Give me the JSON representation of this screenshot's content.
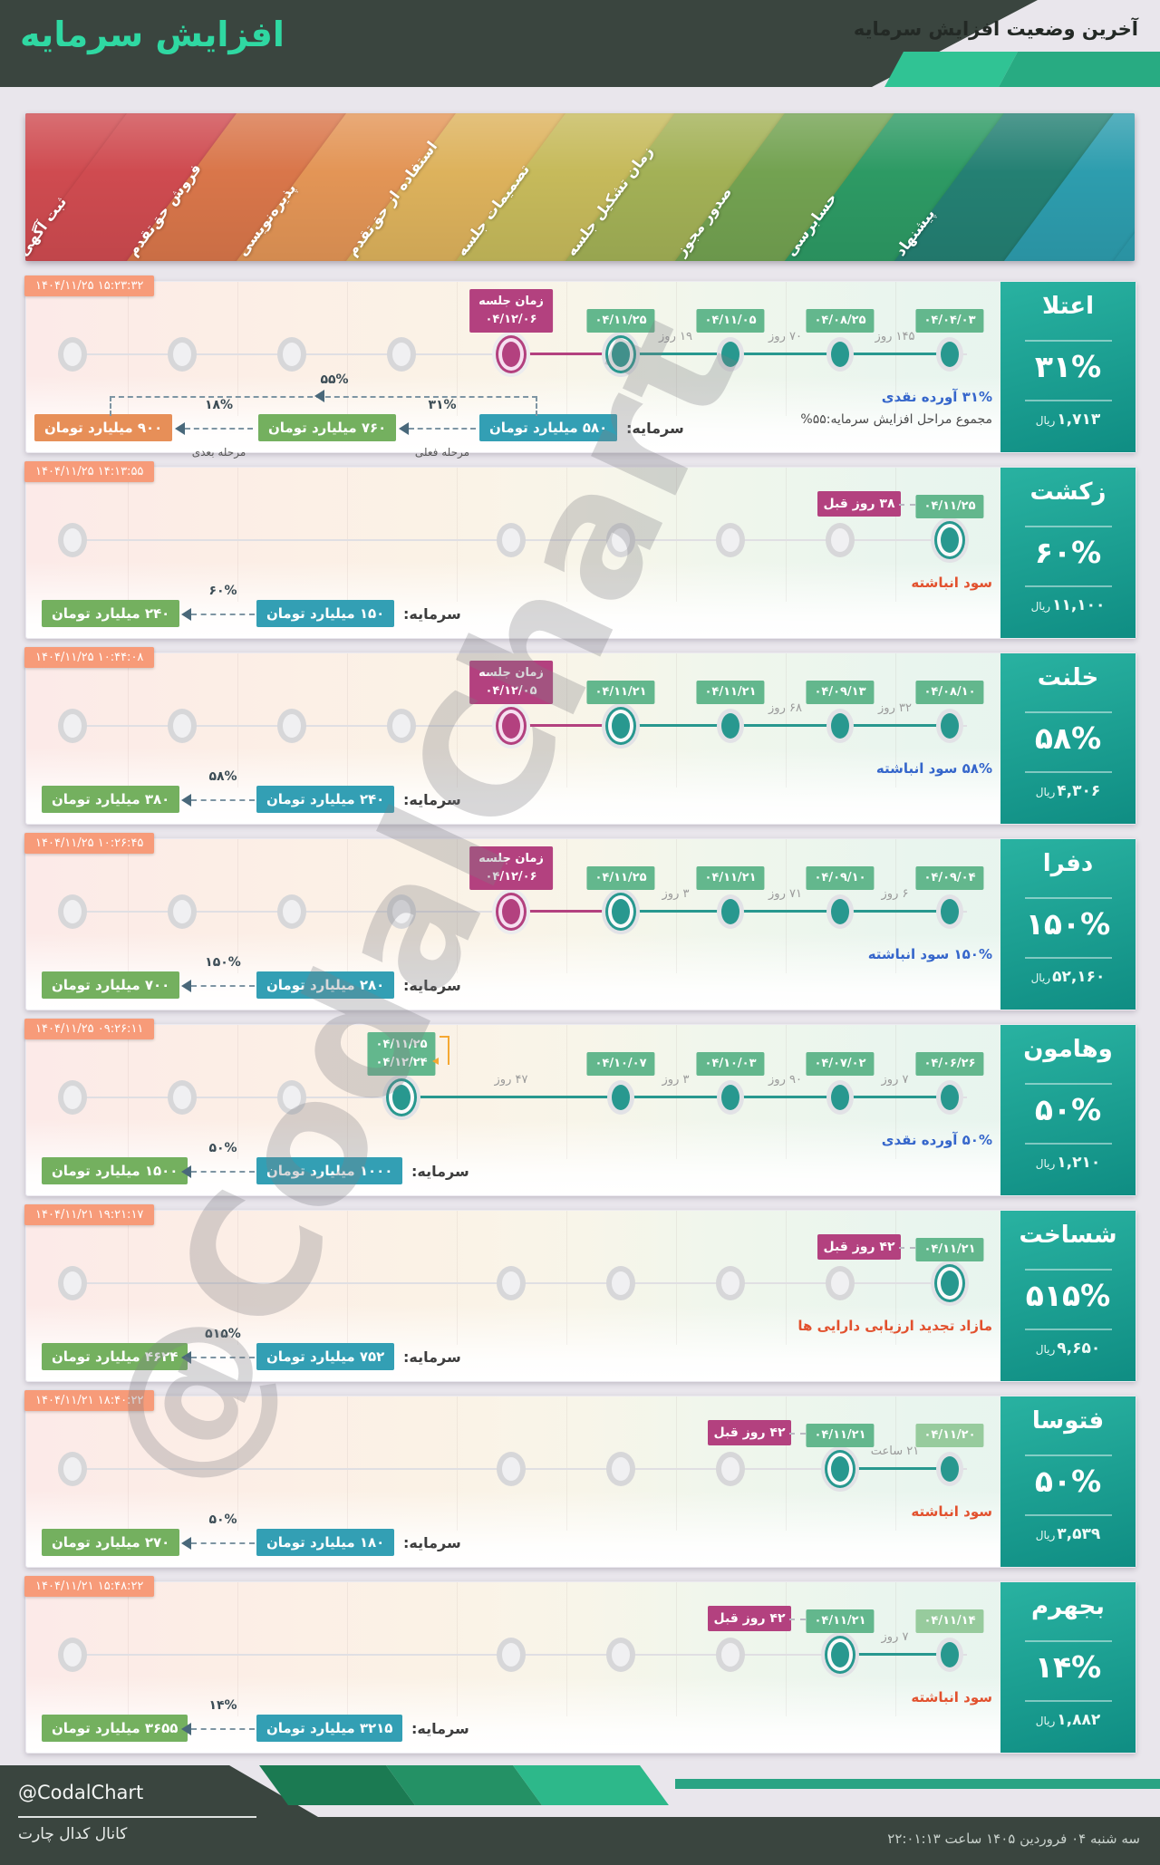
{
  "page": {
    "bg": "#e9e6ec"
  },
  "colors": {
    "header_dark": "#3a453f",
    "title": "#2fd8a2",
    "panel_grad_a": "#29b2a1",
    "panel_grad_b": "#0f8d83",
    "salmon": "#f79b79",
    "date_badge": "#63b78d",
    "date_badge_light": "#97cb9d",
    "magenta": "#b3417f",
    "teal_dot": "#28988f",
    "blue_box": "#339fb4",
    "green_box": "#74b05f",
    "orange_box": "#e78f58",
    "status_red": "#e2512e",
    "status_blue": "#3566cb",
    "status_dark": "#4a4a4a",
    "arrow": "#49687a",
    "bracket_orange": "#f5a833"
  },
  "header": {
    "title": "افزایش سرمایه",
    "subtitle": "آخرین وضعیت افزایش سرمایه"
  },
  "banner": {
    "stages": [
      {
        "label": "ثبت آگهی",
        "color": "#cf4b50"
      },
      {
        "label": "فروش حق‌تقدم",
        "color": "#d9764a"
      },
      {
        "label": "پذیره‌نویسی",
        "color": "#e39556"
      },
      {
        "label": "استفاده از حق‌تقدم",
        "color": "#ddb25c"
      },
      {
        "label": "تصمیمات جلسه",
        "color": "#c6ba5b"
      },
      {
        "label": "زمان تشکیل جلسه",
        "color": "#a3b156"
      },
      {
        "label": "صدور مجوز",
        "color": "#73a251"
      },
      {
        "label": "حسابرسی",
        "color": "#2d9a64"
      },
      {
        "label": "پیشنهاد",
        "color": "#248073"
      }
    ],
    "filler": "#2d9dae"
  },
  "labels": {
    "rial": "ریال",
    "capital": "سرمایه:",
    "meeting": "زمان جلسه"
  },
  "watermark": "@CodalChart",
  "rows": [
    {
      "name": "اعتلا",
      "ts": "۱۴۰۴/۱۱/۲۵ ۱۵:۲۳:۳۲",
      "percent": "۳۱%",
      "price": "۱,۷۱۳",
      "gray": [
        1,
        2,
        3,
        4
      ],
      "dots": [
        {
          "col": 5,
          "type": "magenta",
          "meeting": "۰۴/۱۲/۰۶"
        },
        {
          "col": 6,
          "type": "ring",
          "date": "۰۴/۱۱/۲۵"
        },
        {
          "col": 7,
          "type": "teal",
          "date": "۰۴/۱۱/۰۵"
        },
        {
          "col": 8,
          "type": "teal",
          "date": "۰۴/۰۸/۲۵"
        },
        {
          "col": 9,
          "type": "teal",
          "date": "۰۴/۰۴/۰۳"
        }
      ],
      "seg": [
        {
          "a": 5,
          "b": 6,
          "color": "magenta"
        },
        {
          "a": 6,
          "b": 9,
          "color": "teal"
        }
      ],
      "days": [
        {
          "a": 6,
          "b": 7,
          "text": "۱۹ روز"
        },
        {
          "a": 7,
          "b": 8,
          "text": "۷۰ روز"
        },
        {
          "a": 8,
          "b": 9,
          "text": "۱۴۵ روز"
        }
      ],
      "status": [
        {
          "text": "۳۱% آورده نقدی",
          "color": "blue"
        },
        {
          "text": "مجموع مراحل افزایش سرمایه:۵۵%",
          "color": "dark"
        }
      ],
      "flow": {
        "type": "triple",
        "capital_box": "۵۸۰ میلیارد تومان",
        "current_box": "۷۶۰ میلیارد تومان",
        "next_box": "۹۰۰ میلیارد تومان",
        "current_pct": "۳۱%",
        "current_label": "مرحله فعلی",
        "next_pct": "۱۸%",
        "next_label": "مرحله بعدی",
        "total_pct": "۵۵%"
      }
    },
    {
      "name": "زکشت",
      "ts": "۱۴۰۴/۱۱/۲۵ ۱۴:۱۳:۵۵",
      "percent": "۶۰%",
      "price": "۱۱,۱۰۰",
      "gray": [
        1,
        5,
        6,
        7,
        8
      ],
      "dots": [
        {
          "col": 9,
          "type": "ring",
          "date": "۰۴/۱۱/۲۵",
          "ago": "۳۸ روز قبل"
        }
      ],
      "seg": [],
      "days": [],
      "status": [
        {
          "text": "سود انباشته",
          "color": "red"
        }
      ],
      "flow": {
        "type": "simple",
        "capital_box": "۱۵۰ میلیارد تومان",
        "target_box": "۲۴۰ میلیارد تومان",
        "pct": "۶۰%"
      }
    },
    {
      "name": "خلنت",
      "ts": "۱۴۰۴/۱۱/۲۵ ۱۰:۴۴:۰۸",
      "percent": "۵۸%",
      "price": "۴,۳۰۶",
      "gray": [
        1,
        2,
        3,
        4
      ],
      "dots": [
        {
          "col": 5,
          "type": "magenta",
          "meeting": "۰۴/۱۲/۰۵"
        },
        {
          "col": 6,
          "type": "ring",
          "date": "۰۴/۱۱/۲۱"
        },
        {
          "col": 7,
          "type": "teal",
          "date": "۰۴/۱۱/۲۱"
        },
        {
          "col": 8,
          "type": "teal",
          "date": "۰۴/۰۹/۱۳"
        },
        {
          "col": 9,
          "type": "teal",
          "date": "۰۴/۰۸/۱۰"
        }
      ],
      "seg": [
        {
          "a": 5,
          "b": 6,
          "color": "magenta"
        },
        {
          "a": 6,
          "b": 9,
          "color": "teal"
        }
      ],
      "days": [
        {
          "a": 7,
          "b": 8,
          "text": "۶۸ روز"
        },
        {
          "a": 8,
          "b": 9,
          "text": "۳۲ روز"
        }
      ],
      "status": [
        {
          "text": "۵۸% سود انباشته",
          "color": "blue"
        }
      ],
      "flow": {
        "type": "simple",
        "capital_box": "۲۴۰ میلیارد تومان",
        "target_box": "۳۸۰ میلیارد تومان",
        "pct": "۵۸%"
      }
    },
    {
      "name": "دفرا",
      "ts": "۱۴۰۴/۱۱/۲۵ ۱۰:۲۶:۴۵",
      "percent": "۱۵۰%",
      "price": "۵۲,۱۶۰",
      "gray": [
        1,
        2,
        3,
        4
      ],
      "dots": [
        {
          "col": 5,
          "type": "magenta",
          "meeting": "۰۴/۱۲/۰۶"
        },
        {
          "col": 6,
          "type": "ring",
          "date": "۰۴/۱۱/۲۵"
        },
        {
          "col": 7,
          "type": "teal",
          "date": "۰۴/۱۱/۲۱"
        },
        {
          "col": 8,
          "type": "teal",
          "date": "۰۴/۰۹/۱۰"
        },
        {
          "col": 9,
          "type": "teal",
          "date": "۰۴/۰۹/۰۴"
        }
      ],
      "seg": [
        {
          "a": 5,
          "b": 6,
          "color": "magenta"
        },
        {
          "a": 6,
          "b": 9,
          "color": "teal"
        }
      ],
      "days": [
        {
          "a": 6,
          "b": 7,
          "text": "۳ روز"
        },
        {
          "a": 7,
          "b": 8,
          "text": "۷۱ روز"
        },
        {
          "a": 8,
          "b": 9,
          "text": "۶ روز"
        }
      ],
      "status": [
        {
          "text": "۱۵۰% سود انباشته",
          "color": "blue"
        }
      ],
      "flow": {
        "type": "simple",
        "capital_box": "۲۸۰ میلیارد تومان",
        "target_box": "۷۰۰ میلیارد تومان",
        "pct": "۱۵۰%"
      }
    },
    {
      "name": "وهامون",
      "ts": "۱۴۰۴/۱۱/۲۵ ۰۹:۲۶:۱۱",
      "percent": "۵۰%",
      "price": "۱,۲۱۰",
      "gray": [
        1,
        2,
        3
      ],
      "dots": [
        {
          "col": 4,
          "type": "ring",
          "stack": [
            "۰۴/۱۱/۲۵",
            "۰۴/۱۲/۲۴"
          ]
        },
        {
          "col": 6,
          "type": "teal",
          "date": "۰۴/۱۰/۰۷"
        },
        {
          "col": 7,
          "type": "teal",
          "date": "۰۴/۱۰/۰۳"
        },
        {
          "col": 8,
          "type": "teal",
          "date": "۰۴/۰۷/۰۲"
        },
        {
          "col": 9,
          "type": "teal",
          "date": "۰۴/۰۶/۲۶"
        }
      ],
      "seg": [
        {
          "a": 4,
          "b": 9,
          "color": "teal"
        }
      ],
      "days": [
        {
          "a": 4,
          "b": 6,
          "text": "۴۷ روز"
        },
        {
          "a": 6,
          "b": 7,
          "text": "۳ روز"
        },
        {
          "a": 7,
          "b": 8,
          "text": "۹۰ روز"
        },
        {
          "a": 8,
          "b": 9,
          "text": "۷ روز"
        }
      ],
      "status": [
        {
          "text": "۵۰% آورده نقدی",
          "color": "blue"
        }
      ],
      "flow": {
        "type": "simple",
        "capital_box": "۱۰۰۰ میلیارد تومان",
        "target_box": "۱۵۰۰ میلیارد تومان",
        "pct": "۵۰%"
      }
    },
    {
      "name": "شساخت",
      "ts": "۱۴۰۴/۱۱/۲۱ ۱۹:۲۱:۱۷",
      "percent": "۵۱۵%",
      "price": "۹,۶۵۰",
      "gray": [
        1,
        5,
        6,
        7,
        8
      ],
      "dots": [
        {
          "col": 9,
          "type": "ring",
          "date": "۰۴/۱۱/۲۱",
          "ago": "۴۲ روز قبل"
        }
      ],
      "seg": [],
      "days": [],
      "status": [
        {
          "text": "مازاد تجدید ارزیابی دارایی ها",
          "color": "red"
        }
      ],
      "flow": {
        "type": "simple",
        "capital_box": "۷۵۲ میلیارد تومان",
        "target_box": "۴۶۲۴ میلیارد تومان",
        "pct": "۵۱۵%"
      }
    },
    {
      "name": "فتوسا",
      "ts": "۱۴۰۴/۱۱/۲۱ ۱۸:۴۰:۲۲",
      "percent": "۵۰%",
      "price": "۳,۵۳۹",
      "gray": [
        1,
        5,
        6,
        7
      ],
      "dots": [
        {
          "col": 8,
          "type": "ring",
          "date": "۰۴/۱۱/۲۱",
          "ago": "۴۲ روز قبل"
        },
        {
          "col": 9,
          "type": "teal",
          "light": true,
          "date": "۰۴/۱۱/۲۰"
        }
      ],
      "seg": [
        {
          "a": 8,
          "b": 9,
          "color": "teal"
        }
      ],
      "days": [
        {
          "a": 8,
          "b": 9,
          "text": "۲۱ ساعت"
        }
      ],
      "status": [
        {
          "text": "سود انباشته",
          "color": "red"
        }
      ],
      "flow": {
        "type": "simple",
        "capital_box": "۱۸۰ میلیارد تومان",
        "target_box": "۲۷۰ میلیارد تومان",
        "pct": "۵۰%"
      }
    },
    {
      "name": "بجهرم",
      "ts": "۱۴۰۴/۱۱/۲۱ ۱۵:۴۸:۲۲",
      "percent": "۱۴%",
      "price": "۱,۸۸۲",
      "gray": [
        1,
        5,
        6,
        7
      ],
      "dots": [
        {
          "col": 8,
          "type": "ring",
          "date": "۰۴/۱۱/۲۱",
          "ago": "۴۲ روز قبل"
        },
        {
          "col": 9,
          "type": "teal",
          "light": true,
          "date": "۰۴/۱۱/۱۴"
        }
      ],
      "seg": [
        {
          "a": 8,
          "b": 9,
          "color": "teal"
        }
      ],
      "days": [
        {
          "a": 8,
          "b": 9,
          "text": "۷ روز"
        }
      ],
      "status": [
        {
          "text": "سود انباشته",
          "color": "red"
        }
      ],
      "flow": {
        "type": "simple",
        "capital_box": "۳۲۱۵ میلیارد تومان",
        "target_box": "۳۶۵۵ میلیارد تومان",
        "pct": "۱۴%"
      }
    }
  ],
  "footer": {
    "handle": "@CodalChart",
    "channel": "کانال کدال چارت",
    "datetime": "سه شنبه ۰۴ فروردین ۱۴۰۵ ساعت ۲۲:۰۱:۱۳",
    "shape_colors": [
      "#1b7a52",
      "#249165",
      "#2db88a"
    ],
    "bar_color": "#2aa383"
  }
}
